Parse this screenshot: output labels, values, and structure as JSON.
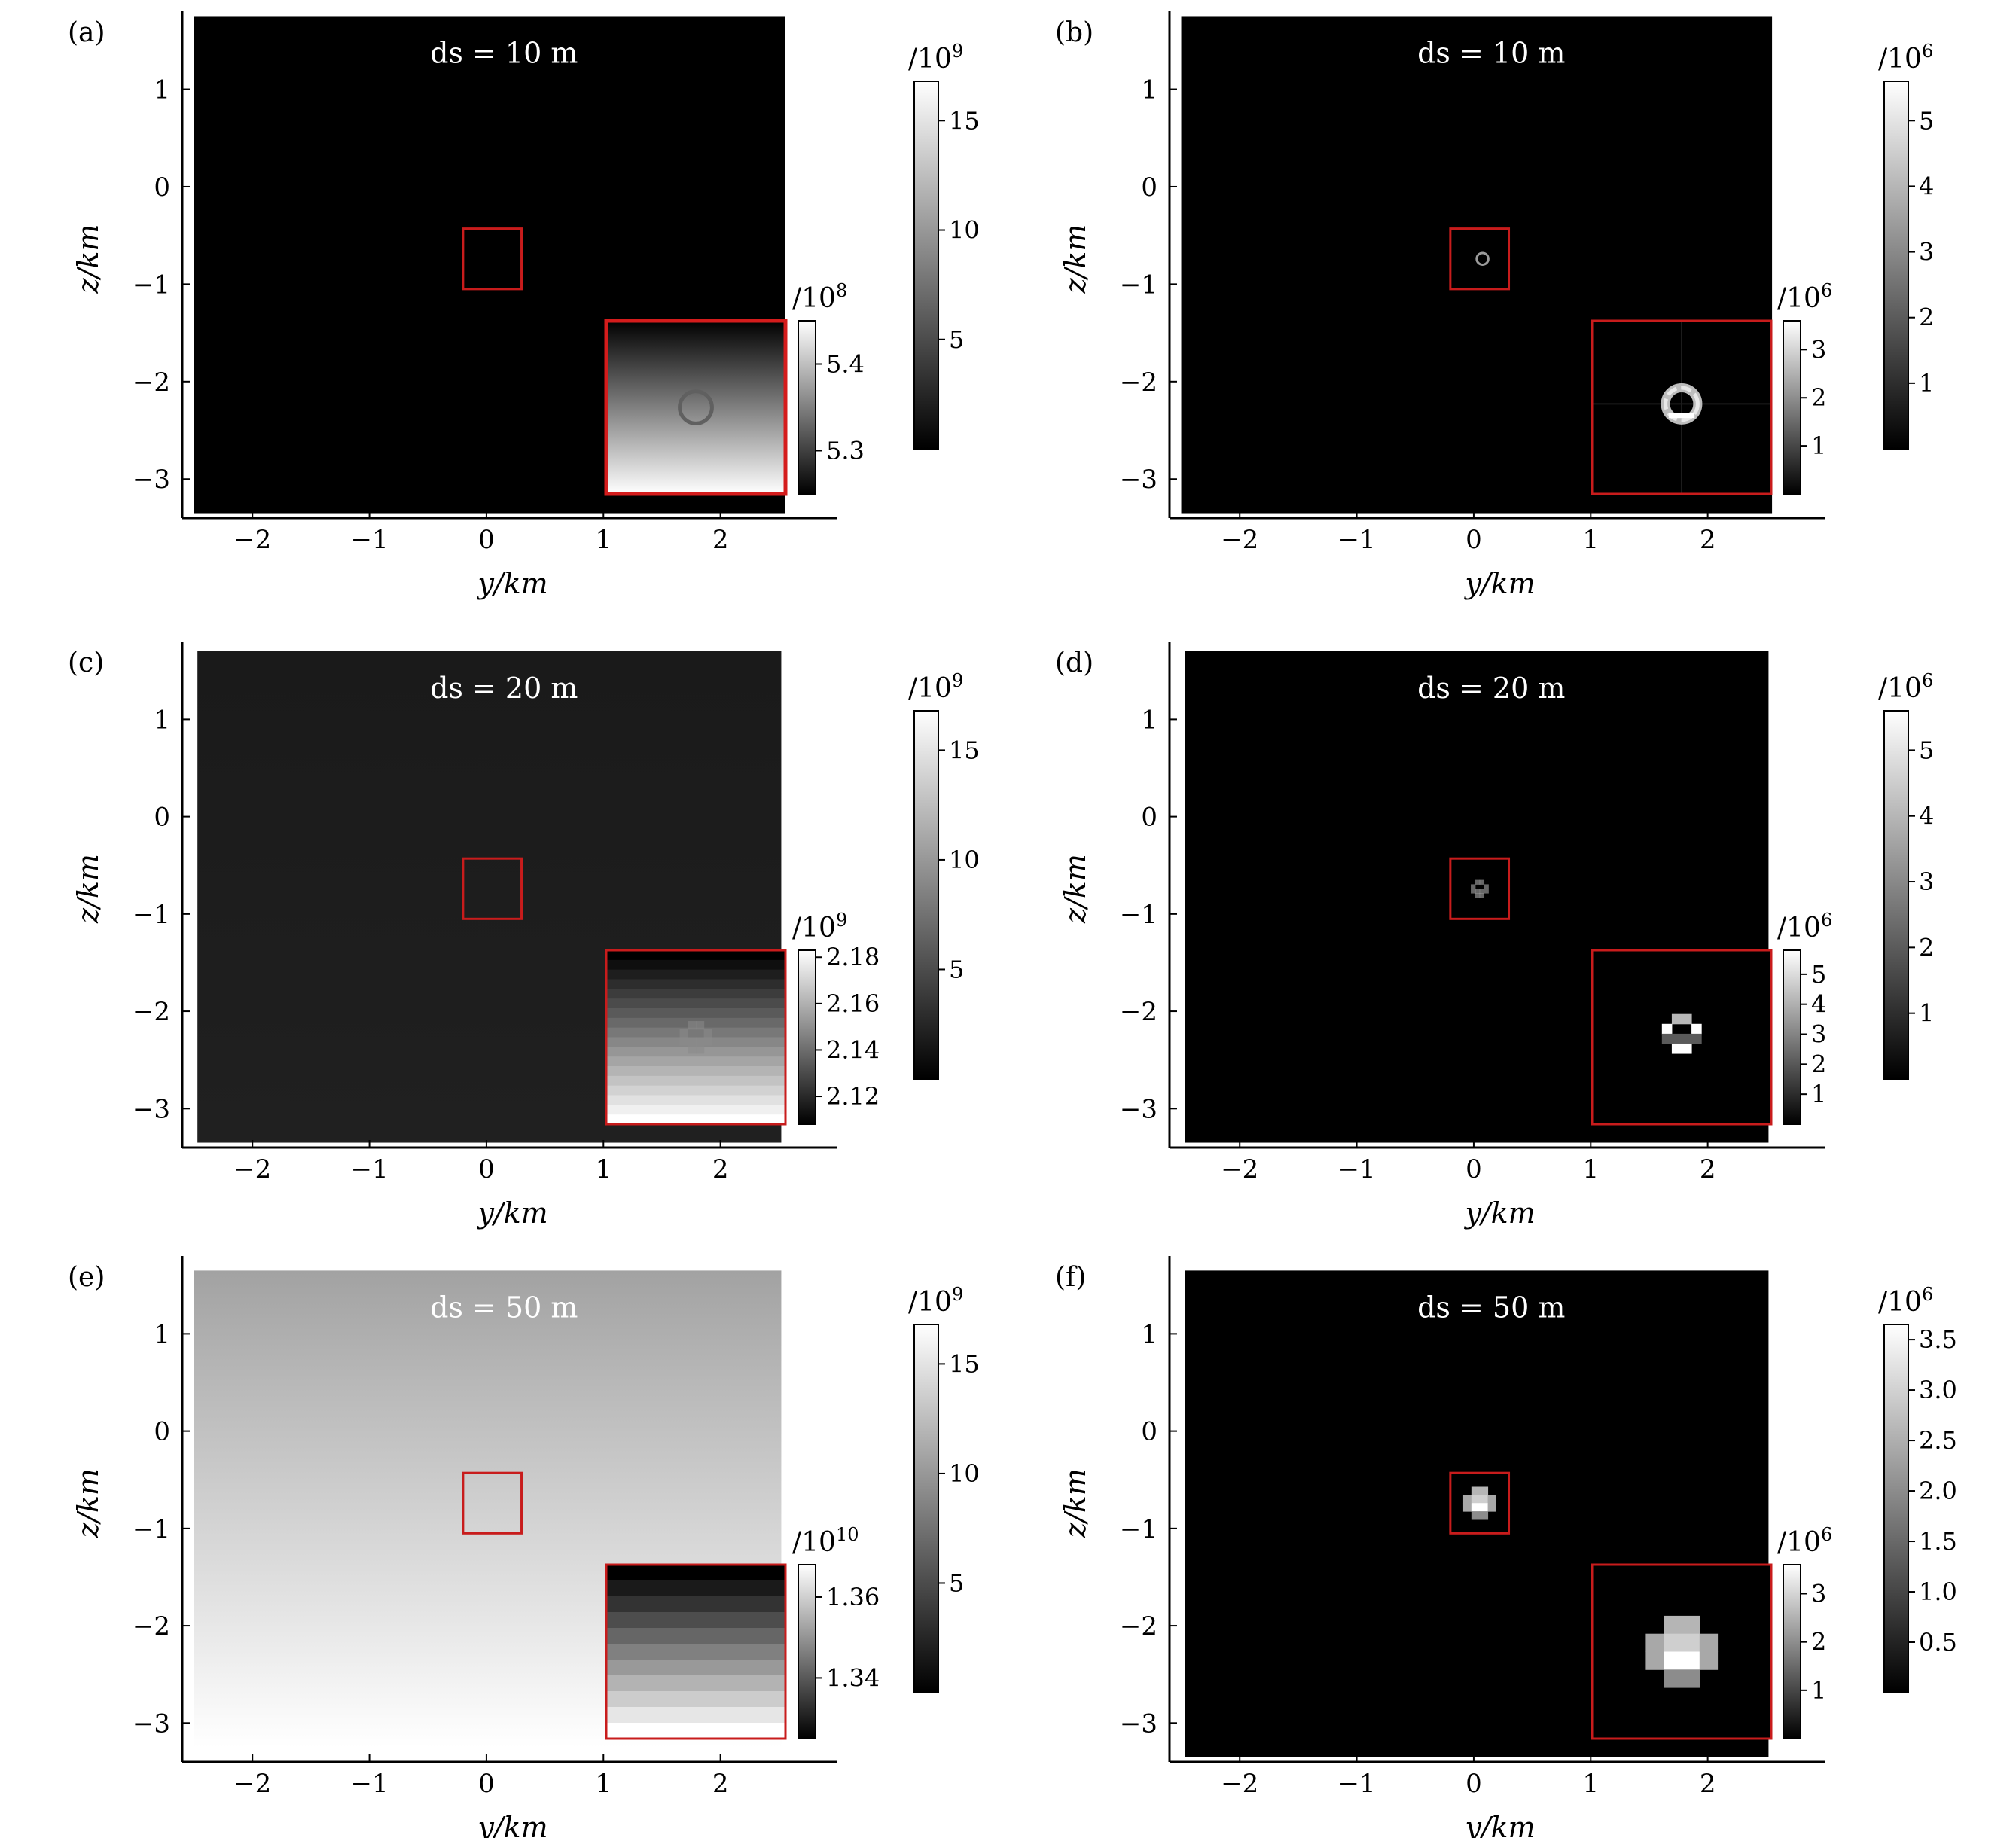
{
  "chart_data": [
    {
      "type": "heatmap",
      "panel_label": "(a)",
      "annotation": "ds = 10 m",
      "xlabel": "y/km",
      "ylabel": "z/km",
      "xlim": [
        -2.6,
        3.0
      ],
      "ylim": [
        -3.4,
        1.8
      ],
      "xticks": [
        "−2",
        "−1",
        "0",
        "1",
        "2"
      ],
      "xtick_values": [
        -2,
        -1,
        0,
        1,
        2
      ],
      "yticks": [
        "1",
        "0",
        "−1",
        "−2",
        "−3"
      ],
      "ytick_values": [
        1,
        0,
        -1,
        -2,
        -3
      ],
      "extent": {
        "y": [
          -2.5,
          2.55
        ],
        "z": [
          -3.35,
          1.75
        ]
      },
      "field": {
        "style": "uniform",
        "top": "#000000",
        "bottom": "#000000"
      },
      "roi": {
        "y": [
          -0.2,
          0.3
        ],
        "z": [
          -1.05,
          -0.43
        ]
      },
      "colorbar": {
        "exponent": "/10",
        "power": "9",
        "ticks": [
          "15",
          "10",
          "5"
        ],
        "tick_values": [
          15,
          10,
          5
        ],
        "range": [
          0,
          16.8
        ]
      },
      "inset": {
        "style": "smooth",
        "top": "#000000",
        "bottom": "#ffffff",
        "border_color": "#d41c1c",
        "border_width": 5,
        "feature": {
          "type": "ring",
          "cx": 0.5,
          "cy": 0.5,
          "r": 0.09,
          "color": "#606060"
        },
        "colorbar": {
          "exponent": "/10",
          "power": "8",
          "ticks": [
            "5.4",
            "5.3"
          ],
          "tick_values": [
            5.4,
            5.3
          ],
          "range": [
            5.25,
            5.45
          ]
        }
      }
    },
    {
      "type": "heatmap",
      "panel_label": "(b)",
      "annotation": "ds = 10 m",
      "xlabel": "y/km",
      "ylabel": "z/km",
      "xlim": [
        -2.6,
        3.0
      ],
      "ylim": [
        -3.4,
        1.8
      ],
      "xticks": [
        "−2",
        "−1",
        "0",
        "1",
        "2"
      ],
      "xtick_values": [
        -2,
        -1,
        0,
        1,
        2
      ],
      "yticks": [
        "1",
        "0",
        "−1",
        "−2",
        "−3"
      ],
      "ytick_values": [
        1,
        0,
        -1,
        -2,
        -3
      ],
      "extent": {
        "y": [
          -2.5,
          2.55
        ],
        "z": [
          -3.35,
          1.75
        ]
      },
      "field": {
        "style": "uniform",
        "top": "#000000",
        "bottom": "#000000"
      },
      "roi": {
        "y": [
          -0.2,
          0.3
        ],
        "z": [
          -1.05,
          -0.43
        ]
      },
      "roi_feature": {
        "type": "ring",
        "color": "#9a9a9a"
      },
      "colorbar": {
        "exponent": "/10",
        "power": "6",
        "ticks": [
          "5",
          "4",
          "3",
          "2",
          "1"
        ],
        "tick_values": [
          5,
          4,
          3,
          2,
          1
        ],
        "range": [
          0,
          5.6
        ]
      },
      "inset": {
        "style": "uniform",
        "top": "#000000",
        "bottom": "#000000",
        "border_color": "#c81c1c",
        "border_width": 3,
        "feature": {
          "type": "bright-ring",
          "cx": 0.5,
          "cy": 0.48,
          "r": 0.09,
          "color": "#e8e8e8"
        },
        "colorbar": {
          "exponent": "/10",
          "power": "6",
          "ticks": [
            "3",
            "2",
            "1"
          ],
          "tick_values": [
            3,
            2,
            1
          ],
          "range": [
            0,
            3.6
          ]
        }
      }
    },
    {
      "type": "heatmap",
      "panel_label": "(c)",
      "annotation": "ds = 20 m",
      "xlabel": "y/km",
      "ylabel": "z/km",
      "xlim": [
        -2.6,
        3.0
      ],
      "ylim": [
        -3.4,
        1.8
      ],
      "xticks": [
        "−2",
        "−1",
        "0",
        "1",
        "2"
      ],
      "xtick_values": [
        -2,
        -1,
        0,
        1,
        2
      ],
      "yticks": [
        "1",
        "0",
        "−1",
        "−2",
        "−3"
      ],
      "ytick_values": [
        1,
        0,
        -1,
        -2,
        -3
      ],
      "extent": {
        "y": [
          -2.47,
          2.52
        ],
        "z": [
          -3.35,
          1.7
        ]
      },
      "field": {
        "style": "uniform",
        "top": "#1a1a1a",
        "bottom": "#202020"
      },
      "roi": {
        "y": [
          -0.2,
          0.3
        ],
        "z": [
          -1.05,
          -0.43
        ]
      },
      "colorbar": {
        "exponent": "/10",
        "power": "9",
        "ticks": [
          "15",
          "10",
          "5"
        ],
        "tick_values": [
          15,
          10,
          5
        ],
        "range": [
          0,
          16.8
        ]
      },
      "inset": {
        "style": "stepped",
        "steps": 18,
        "top": "#000000",
        "bottom": "#ffffff",
        "border_color": "#c81c1c",
        "border_width": 3,
        "feature": {
          "type": "blocky",
          "cx": 0.5,
          "cy": 0.5,
          "size": 0.18,
          "color": "#8a8a8a"
        },
        "colorbar": {
          "exponent": "/10",
          "power": "9",
          "ticks": [
            "2.18",
            "2.16",
            "2.14",
            "2.12"
          ],
          "tick_values": [
            2.18,
            2.16,
            2.14,
            2.12
          ],
          "range": [
            2.108,
            2.183
          ]
        }
      }
    },
    {
      "type": "heatmap",
      "panel_label": "(d)",
      "annotation": "ds = 20 m",
      "xlabel": "y/km",
      "ylabel": "z/km",
      "xlim": [
        -2.6,
        3.0
      ],
      "ylim": [
        -3.4,
        1.8
      ],
      "xticks": [
        "−2",
        "−1",
        "0",
        "1",
        "2"
      ],
      "xtick_values": [
        -2,
        -1,
        0,
        1,
        2
      ],
      "yticks": [
        "1",
        "0",
        "−1",
        "−2",
        "−3"
      ],
      "ytick_values": [
        1,
        0,
        -1,
        -2,
        -3
      ],
      "extent": {
        "y": [
          -2.47,
          2.52
        ],
        "z": [
          -3.35,
          1.7
        ]
      },
      "field": {
        "style": "uniform",
        "top": "#000000",
        "bottom": "#000000"
      },
      "roi": {
        "y": [
          -0.2,
          0.3
        ],
        "z": [
          -1.05,
          -0.43
        ]
      },
      "roi_feature": {
        "type": "blocky",
        "color": "#bbbbbb"
      },
      "colorbar": {
        "exponent": "/10",
        "power": "6",
        "ticks": [
          "5",
          "4",
          "3",
          "2",
          "1"
        ],
        "tick_values": [
          5,
          4,
          3,
          2,
          1
        ],
        "range": [
          0,
          5.6
        ]
      },
      "inset": {
        "style": "uniform",
        "top": "#000000",
        "bottom": "#000000",
        "border_color": "#c81c1c",
        "border_width": 3,
        "feature": {
          "type": "blocky-bright",
          "cx": 0.5,
          "cy": 0.48,
          "size": 0.22,
          "color": "#ffffff"
        },
        "colorbar": {
          "exponent": "/10",
          "power": "6",
          "ticks": [
            "5",
            "4",
            "3",
            "2",
            "1"
          ],
          "tick_values": [
            5,
            4,
            3,
            2,
            1
          ],
          "range": [
            0,
            5.8
          ]
        }
      }
    },
    {
      "type": "heatmap",
      "panel_label": "(e)",
      "annotation": "ds = 50 m",
      "xlabel": "y/km",
      "ylabel": "z/km",
      "xlim": [
        -2.6,
        3.0
      ],
      "ylim": [
        -3.4,
        1.8
      ],
      "xticks": [
        "−2",
        "−1",
        "0",
        "1",
        "2"
      ],
      "xtick_values": [
        -2,
        -1,
        0,
        1,
        2
      ],
      "yticks": [
        "1",
        "0",
        "−1",
        "−2",
        "−3"
      ],
      "ytick_values": [
        1,
        0,
        -1,
        -2,
        -3
      ],
      "extent": {
        "y": [
          -2.5,
          2.52
        ],
        "z": [
          -3.25,
          1.65
        ]
      },
      "field": {
        "style": "smooth",
        "top": "#a2a2a2",
        "bottom": "#ffffff"
      },
      "roi": {
        "y": [
          -0.2,
          0.3
        ],
        "z": [
          -1.05,
          -0.43
        ]
      },
      "colorbar": {
        "exponent": "/10",
        "power": "9",
        "ticks": [
          "15",
          "10",
          "5"
        ],
        "tick_values": [
          15,
          10,
          5
        ],
        "range": [
          0,
          16.8
        ]
      },
      "inset": {
        "style": "stepped",
        "steps": 11,
        "top": "#000000",
        "bottom": "#ffffff",
        "border_color": "#c81c1c",
        "border_width": 3,
        "colorbar": {
          "exponent": "/10",
          "power": "10",
          "ticks": [
            "1.36",
            "1.34"
          ],
          "tick_values": [
            1.36,
            1.34
          ],
          "range": [
            1.325,
            1.368
          ]
        }
      }
    },
    {
      "type": "heatmap",
      "panel_label": "(f)",
      "annotation": "ds = 50 m",
      "xlabel": "y/km",
      "ylabel": "z/km",
      "xlim": [
        -2.6,
        3.0
      ],
      "ylim": [
        -3.4,
        1.8
      ],
      "xticks": [
        "−2",
        "−1",
        "0",
        "1",
        "2"
      ],
      "xtick_values": [
        -2,
        -1,
        0,
        1,
        2
      ],
      "yticks": [
        "1",
        "0",
        "−1",
        "−2",
        "−3"
      ],
      "ytick_values": [
        1,
        0,
        -1,
        -2,
        -3
      ],
      "extent": {
        "y": [
          -2.47,
          2.52
        ],
        "z": [
          -3.35,
          1.65
        ]
      },
      "field": {
        "style": "uniform",
        "top": "#000000",
        "bottom": "#000000"
      },
      "roi": {
        "y": [
          -0.2,
          0.3
        ],
        "z": [
          -1.05,
          -0.43
        ]
      },
      "roi_feature": {
        "type": "cross",
        "color": "#d0d0d0"
      },
      "colorbar": {
        "exponent": "/10",
        "power": "6",
        "ticks": [
          "3.5",
          "3.0",
          "2.5",
          "2.0",
          "1.5",
          "1.0",
          "0.5"
        ],
        "tick_values": [
          3.5,
          3.0,
          2.5,
          2.0,
          1.5,
          1.0,
          0.5
        ],
        "range": [
          0,
          3.65
        ]
      },
      "inset": {
        "style": "uniform",
        "top": "#000000",
        "bottom": "#000000",
        "border_color": "#c81c1c",
        "border_width": 3,
        "feature": {
          "type": "cross",
          "cx": 0.5,
          "cy": 0.5,
          "cell": 0.1,
          "color": "#bdbdbd"
        },
        "colorbar": {
          "exponent": "/10",
          "power": "6",
          "ticks": [
            "3",
            "2",
            "1"
          ],
          "tick_values": [
            3,
            2,
            1
          ],
          "range": [
            0,
            3.6
          ]
        }
      }
    }
  ]
}
